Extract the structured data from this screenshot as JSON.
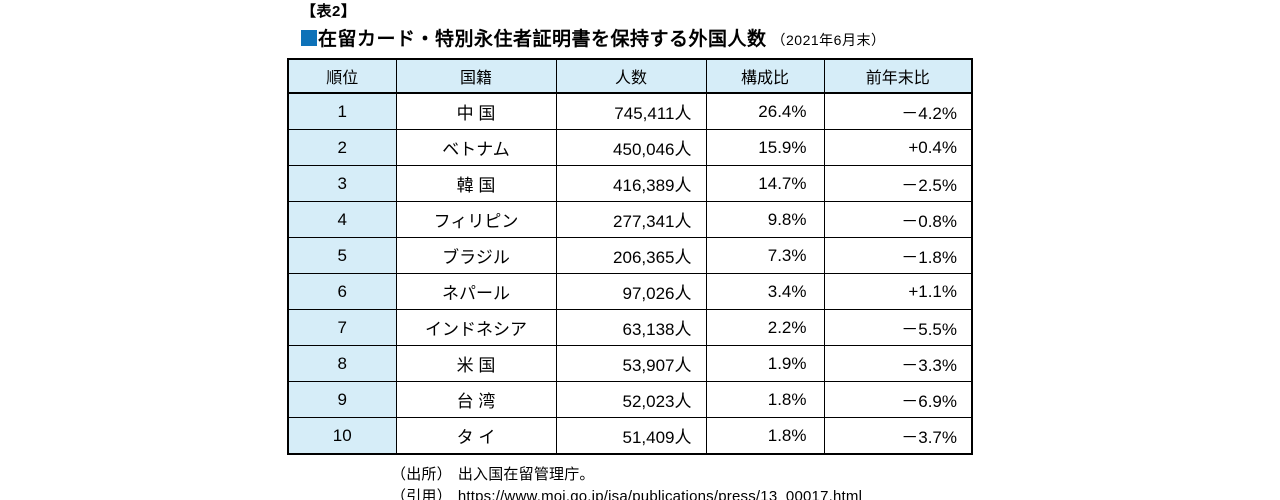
{
  "title": {
    "tag": "【表2】",
    "main": "在留カード・特別永住者証明書を保持する外国人数",
    "date_note": "（2021年6月末）"
  },
  "colors": {
    "accent_blue": "#0E72B8",
    "header_bg": "#D6EDF8",
    "border": "#000000"
  },
  "table": {
    "headers": {
      "rank": "順位",
      "nationality": "国籍",
      "count": "人数",
      "share": "構成比",
      "yoy": "前年末比"
    },
    "rows": [
      {
        "rank": "1",
        "nationality": "中 国",
        "count": "745,411人",
        "share": "26.4%",
        "yoy": "－4.2%"
      },
      {
        "rank": "2",
        "nationality": "ベトナム",
        "count": "450,046人",
        "share": "15.9%",
        "yoy": "+0.4%"
      },
      {
        "rank": "3",
        "nationality": "韓 国",
        "count": "416,389人",
        "share": "14.7%",
        "yoy": "－2.5%"
      },
      {
        "rank": "4",
        "nationality": "フィリピン",
        "count": "277,341人",
        "share": "9.8%",
        "yoy": "－0.8%"
      },
      {
        "rank": "5",
        "nationality": "ブラジル",
        "count": "206,365人",
        "share": "7.3%",
        "yoy": "－1.8%"
      },
      {
        "rank": "6",
        "nationality": "ネパール",
        "count": "97,026人",
        "share": "3.4%",
        "yoy": "+1.1%"
      },
      {
        "rank": "7",
        "nationality": "インドネシア",
        "count": "63,138人",
        "share": "2.2%",
        "yoy": "－5.5%"
      },
      {
        "rank": "8",
        "nationality": "米 国",
        "count": "53,907人",
        "share": "1.9%",
        "yoy": "－3.3%"
      },
      {
        "rank": "9",
        "nationality": "台 湾",
        "count": "52,023人",
        "share": "1.8%",
        "yoy": "－6.9%"
      },
      {
        "rank": "10",
        "nationality": "タ イ",
        "count": "51,409人",
        "share": "1.8%",
        "yoy": "－3.7%"
      }
    ]
  },
  "footer": {
    "source_label": "（出所）",
    "source_text": "出入国在留管理庁。",
    "cite_label": "（引用）",
    "cite_text": "https://www.moj.go.jp/isa/publications/press/13_00017.html"
  }
}
